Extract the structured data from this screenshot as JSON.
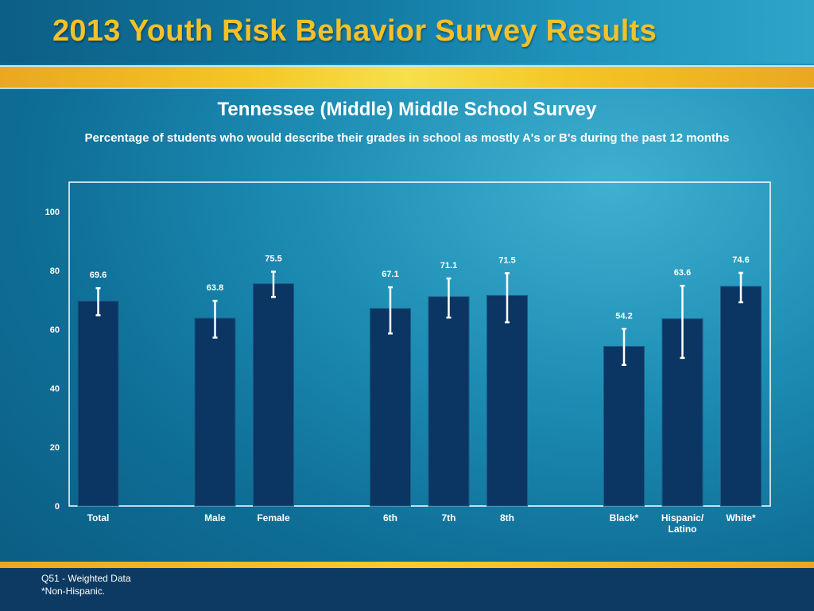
{
  "header": {
    "title": "2013 Youth Risk Behavior Survey Results"
  },
  "chart_data": {
    "type": "bar",
    "title": "Tennessee (Middle) Middle School Survey",
    "subtitle": "Percentage of students who would describe their grades in school as mostly A's or B's during the past 12 months",
    "ylim": [
      0,
      110
    ],
    "yticks": [
      0,
      20,
      40,
      60,
      80,
      100
    ],
    "categories": [
      "Total",
      "Male",
      "Female",
      "6th",
      "7th",
      "8th",
      "Black*",
      "Hispanic/\nLatino",
      "White*"
    ],
    "values": [
      69.6,
      63.8,
      75.5,
      67.1,
      71.1,
      71.5,
      54.2,
      63.6,
      74.6
    ],
    "ci_low": [
      64.8,
      57.2,
      71.0,
      58.6,
      64.0,
      62.4,
      47.9,
      50.3,
      69.2
    ],
    "ci_high": [
      74.0,
      69.7,
      79.6,
      74.3,
      77.3,
      79.1,
      60.2,
      74.8,
      79.2
    ],
    "value_labels": [
      "69.6",
      "63.8",
      "75.5",
      "67.1",
      "71.1",
      "71.5",
      "54.2",
      "63.6",
      "74.6"
    ],
    "bar_color": "#0b3562",
    "grid": false
  },
  "footer": {
    "note1": "Q51 - Weighted Data",
    "note2": "*Non-Hispanic."
  }
}
